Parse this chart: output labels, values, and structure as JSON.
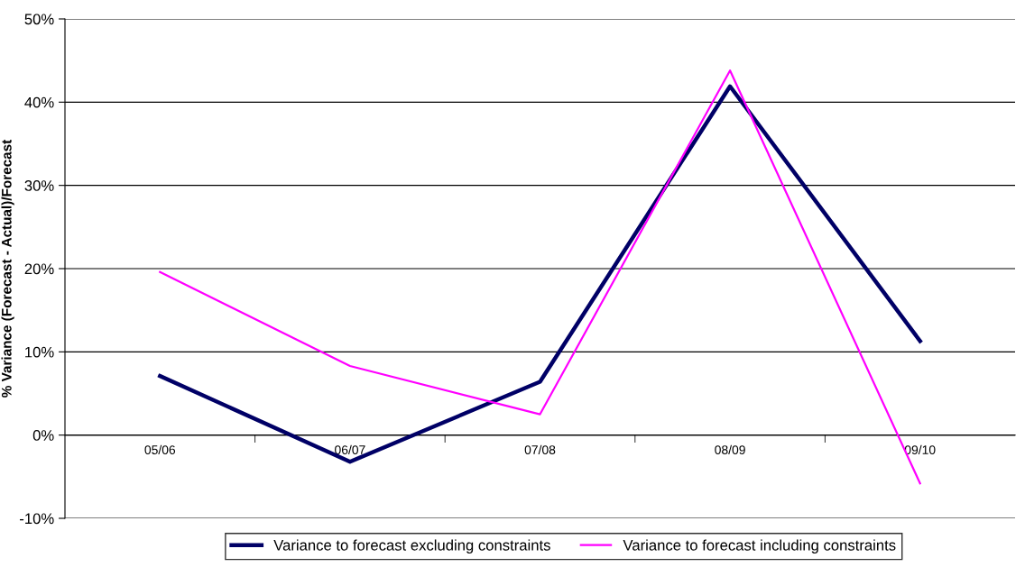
{
  "chart_data": {
    "type": "line",
    "ylabel": "% Variance (Forecast - Actual)/Forecast",
    "categories": [
      "05/06",
      "06/07",
      "07/08",
      "08/09",
      "09/10"
    ],
    "series": [
      {
        "name": "Variance to forecast excluding constraints",
        "color": "#000066",
        "values": [
          7.1,
          -3.2,
          6.4,
          41.9,
          11.3
        ]
      },
      {
        "name": "Variance to forecast including constraints",
        "color": "#ff00ff",
        "values": [
          19.6,
          8.3,
          2.5,
          43.8,
          -5.8
        ]
      }
    ],
    "ylim": [
      -10,
      50
    ],
    "yticks": [
      {
        "value": -10,
        "label": "-10%"
      },
      {
        "value": 0,
        "label": "0%"
      },
      {
        "value": 10,
        "label": "10%"
      },
      {
        "value": 20,
        "label": "20%"
      },
      {
        "value": 30,
        "label": "30%"
      },
      {
        "value": 40,
        "label": "40%"
      },
      {
        "value": 50,
        "label": "50%"
      }
    ],
    "grid": "y",
    "legend": "bottom",
    "marker": "none",
    "line_style": "solid"
  }
}
